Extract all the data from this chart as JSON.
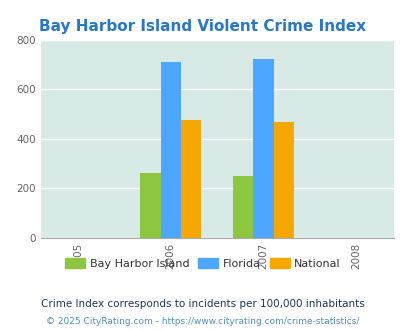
{
  "title": "Bay Harbor Island Violent Crime Index",
  "title_color": "#2878c8",
  "years": [
    2005,
    2006,
    2007,
    2008
  ],
  "bar_years": [
    2006,
    2007
  ],
  "bay_harbor": [
    260,
    248
  ],
  "florida": [
    710,
    722
  ],
  "national": [
    475,
    468
  ],
  "bar_colors": {
    "bay_harbor": "#8dc63f",
    "florida": "#4da6ff",
    "national": "#f7a800"
  },
  "ylim": [
    0,
    800
  ],
  "yticks": [
    0,
    200,
    400,
    600,
    800
  ],
  "background_color": "#d8eae6",
  "legend_labels": [
    "Bay Harbor Island",
    "Florida",
    "National"
  ],
  "footnote1": "Crime Index corresponds to incidents per 100,000 inhabitants",
  "footnote2": "© 2025 CityRating.com - https://www.cityrating.com/crime-statistics/",
  "bar_width": 0.22,
  "footnote1_color": "#1a3a5c",
  "footnote2_color": "#5090c0"
}
